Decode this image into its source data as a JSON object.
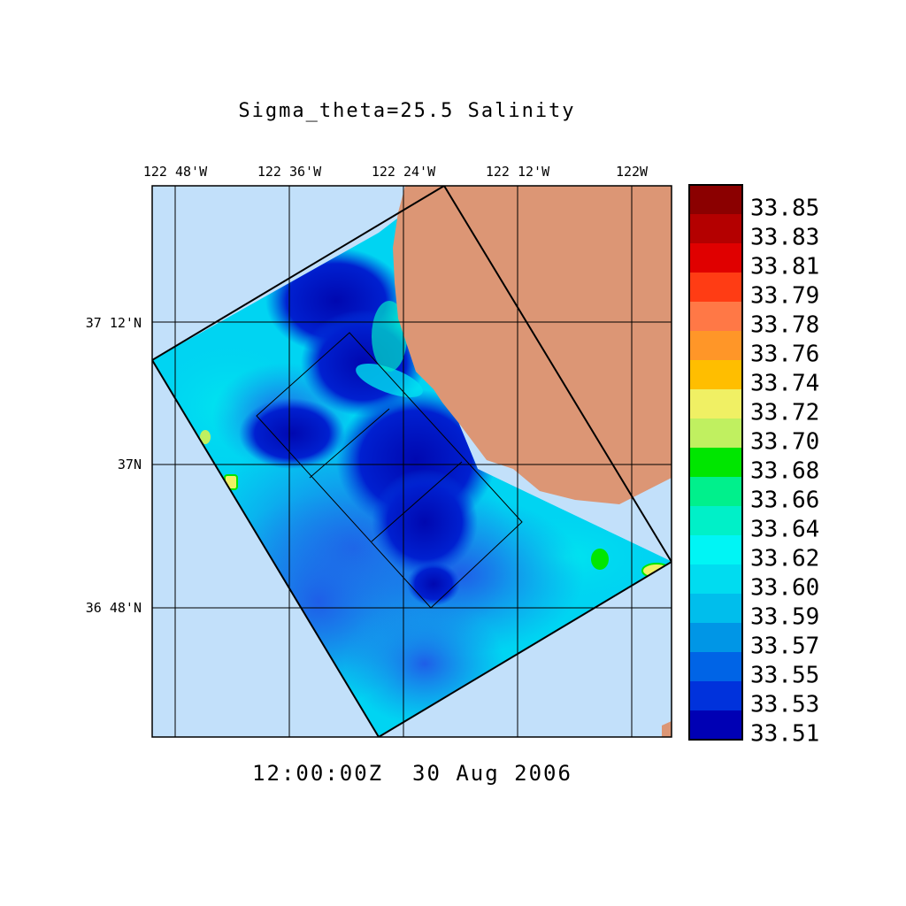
{
  "title": "Sigma_theta=25.5 Salinity",
  "timestamp": "12:00:00Z  30 Aug 2006",
  "lon_labels": [
    "122 48'W",
    "122 36'W",
    "122 24'W",
    "122 12'W",
    "122W"
  ],
  "lat_labels": [
    "37 12'N",
    "37N",
    "36 48'N"
  ],
  "colorbar": {
    "labels": [
      "33.85",
      "33.83",
      "33.81",
      "33.79",
      "33.78",
      "33.76",
      "33.74",
      "33.72",
      "33.70",
      "33.68",
      "33.66",
      "33.64",
      "33.62",
      "33.60",
      "33.59",
      "33.57",
      "33.55",
      "33.53",
      "33.51"
    ],
    "colors": [
      "#8b0000",
      "#b40000",
      "#e00000",
      "#ff3c14",
      "#ff7846",
      "#ff9628",
      "#ffbe00",
      "#f0f064",
      "#c0f060",
      "#00e600",
      "#00f08c",
      "#00f0c8",
      "#00f5f5",
      "#00dcf0",
      "#00beec",
      "#0096e6",
      "#0064e6",
      "#0032dc",
      "#0000b4"
    ]
  },
  "colors": {
    "ocean": "#c2e0fa",
    "land": "#dc9675",
    "grid": "#000000"
  }
}
